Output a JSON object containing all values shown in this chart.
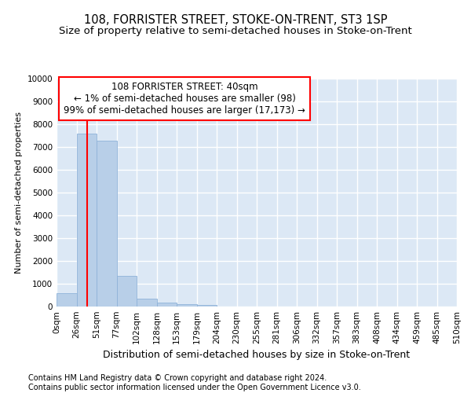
{
  "title": "108, FORRISTER STREET, STOKE-ON-TRENT, ST3 1SP",
  "subtitle": "Size of property relative to semi-detached houses in Stoke-on-Trent",
  "xlabel": "Distribution of semi-detached houses by size in Stoke-on-Trent",
  "ylabel": "Number of semi-detached properties",
  "footer1": "Contains HM Land Registry data © Crown copyright and database right 2024.",
  "footer2": "Contains public sector information licensed under the Open Government Licence v3.0.",
  "bar_labels": [
    "0sqm",
    "26sqm",
    "51sqm",
    "77sqm",
    "102sqm",
    "128sqm",
    "153sqm",
    "179sqm",
    "204sqm",
    "230sqm",
    "255sqm",
    "281sqm",
    "306sqm",
    "332sqm",
    "357sqm",
    "383sqm",
    "408sqm",
    "434sqm",
    "459sqm",
    "485sqm",
    "510sqm"
  ],
  "bar_values": [
    580,
    7600,
    7280,
    1340,
    350,
    175,
    120,
    80,
    0,
    0,
    0,
    0,
    0,
    0,
    0,
    0,
    0,
    0,
    0,
    0
  ],
  "bar_color": "#b8cfe8",
  "bar_edge_color": "#8fb3d9",
  "property_line_x": 1.54,
  "annotation_line1": "108 FORRISTER STREET: 40sqm",
  "annotation_line2": "← 1% of semi-detached houses are smaller (98)",
  "annotation_line3": "99% of semi-detached houses are larger (17,173) →",
  "ylim": [
    0,
    10000
  ],
  "yticks": [
    0,
    1000,
    2000,
    3000,
    4000,
    5000,
    6000,
    7000,
    8000,
    9000,
    10000
  ],
  "bg_color": "#dce8f5",
  "grid_color": "#ffffff",
  "title_fontsize": 10.5,
  "subtitle_fontsize": 9.5,
  "ylabel_fontsize": 8,
  "xlabel_fontsize": 9,
  "tick_fontsize": 7.5,
  "footer_fontsize": 7,
  "annot_fontsize": 8.5
}
